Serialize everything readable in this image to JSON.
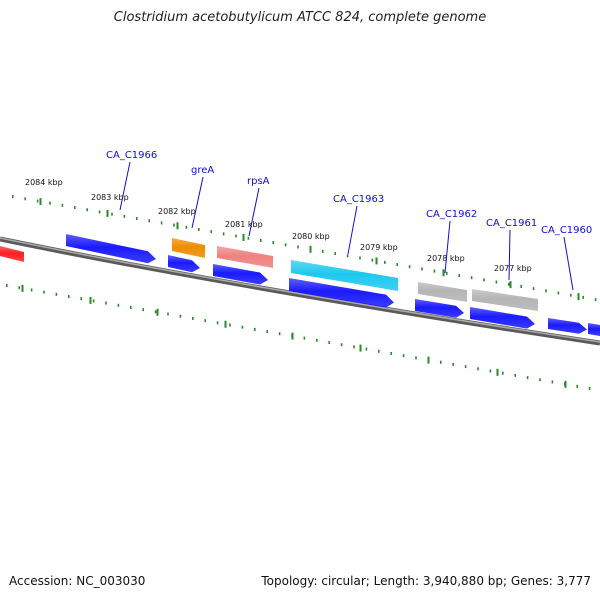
{
  "header": {
    "title": "Clostridium acetobutylicum ATCC 824, complete genome"
  },
  "footer": {
    "accession": "Accession: NC_003030",
    "topology": "Topology: circular; Length: 3,940,880 bp; Genes: 3,777"
  },
  "scale_labels": [
    "2084 kbp",
    "2083 kbp",
    "2082 kbp",
    "2081 kbp",
    "2080 kbp",
    "2079 kbp",
    "2078 kbp",
    "2077 kbp"
  ],
  "genes": [
    {
      "name": "CA_C1966",
      "color": "#1a1aff"
    },
    {
      "name": "greA",
      "color": "#f08c00"
    },
    {
      "name": "rpsA",
      "color": "#f08080"
    },
    {
      "name": "CA_C1963",
      "color": "#1ec8f0"
    },
    {
      "name": "CA_C1962",
      "color": "#b4b4b4"
    },
    {
      "name": "CA_C1961",
      "color": "#b4b4b4"
    },
    {
      "name": "CA_C1960",
      "color": "#1a1aff"
    }
  ],
  "colors": {
    "cds": "#1a1aff",
    "rrna": "#ff2020",
    "backbone": "#808080",
    "ticks": "#2a8a2a",
    "label": "#1010c8"
  }
}
